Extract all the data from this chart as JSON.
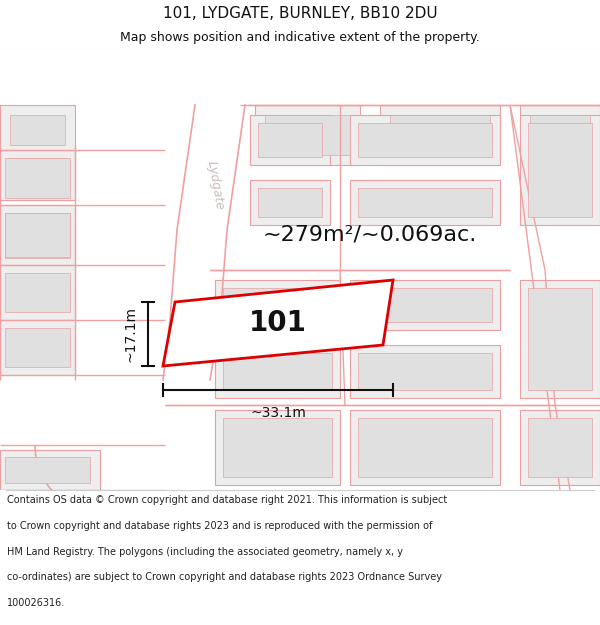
{
  "title": "101, LYDGATE, BURNLEY, BB10 2DU",
  "subtitle": "Map shows position and indicative extent of the property.",
  "footer_lines": [
    "Contains OS data © Crown copyright and database right 2021. This information is subject",
    "to Crown copyright and database rights 2023 and is reproduced with the permission of",
    "HM Land Registry. The polygons (including the associated geometry, namely x, y",
    "co-ordinates) are subject to Crown copyright and database rights 2023 Ordnance Survey",
    "100026316."
  ],
  "area_label": "~279m²/~0.069ac.",
  "width_label": "~33.1m",
  "height_label": "~17.1m",
  "plot_number": "101",
  "map_bg": "#ffffff",
  "road_fill": "#ffffff",
  "road_edge": "#f0a0a0",
  "building_fill": "#eeeeee",
  "building_edge": "#e8a0a0",
  "plot_edge": "#dd0000",
  "plot_fill": "#ffffff",
  "dim_color": "#111111",
  "text_color": "#111111",
  "road_label_color": "#ccbbbb",
  "title_color": "#111111"
}
